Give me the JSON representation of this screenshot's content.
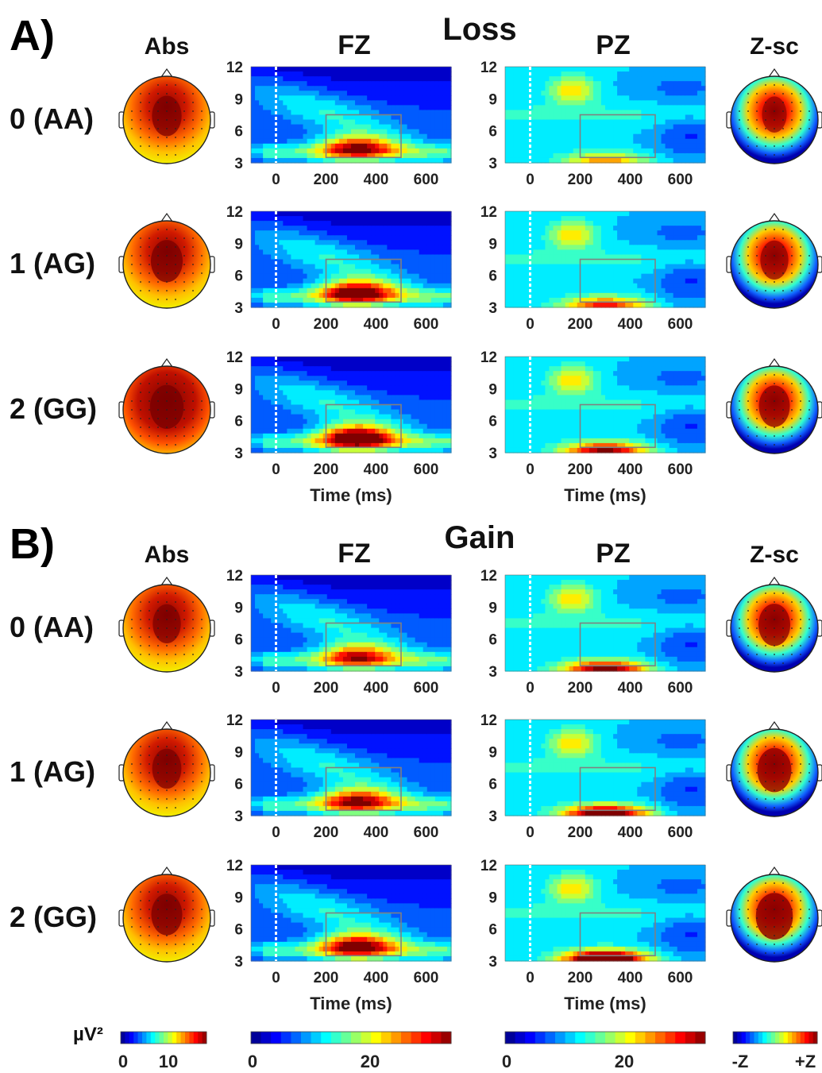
{
  "panels": [
    {
      "letter": "A)",
      "condition": "Loss",
      "col_abs": "Abs",
      "col_fz": "FZ",
      "col_pz": "PZ",
      "col_zsc": "Z-sc",
      "rows": [
        {
          "label": "0 (AA)",
          "fz_peak": 0.62,
          "pz_low": 0.4
        },
        {
          "label": "1 (AG)",
          "fz_peak": 0.72,
          "pz_low": 0.55
        },
        {
          "label": "2 (GG)",
          "fz_peak": 0.8,
          "pz_low": 0.68
        }
      ],
      "xaxis_title": "Time (ms)"
    },
    {
      "letter": "B)",
      "condition": "Gain",
      "col_abs": "Abs",
      "col_fz": "FZ",
      "col_pz": "PZ",
      "col_zsc": "Z-sc",
      "rows": [
        {
          "label": "0 (AA)",
          "fz_peak": 0.55,
          "pz_low": 0.72
        },
        {
          "label": "1 (AG)",
          "fz_peak": 0.6,
          "pz_low": 0.82
        },
        {
          "label": "2 (GG)",
          "fz_peak": 0.68,
          "pz_low": 0.95
        }
      ],
      "xaxis_title": "Time (ms)"
    }
  ],
  "chart_data": {
    "type": "heatmap",
    "x_ticks": [
      "0",
      "200",
      "400",
      "600"
    ],
    "y_ticks": [
      "12",
      "9",
      "6",
      "3"
    ],
    "xlim": [
      -100,
      700
    ],
    "ylim": [
      3,
      12
    ],
    "roi_box": {
      "time": [
        200,
        500
      ],
      "freq": [
        3.5,
        7.5
      ]
    },
    "stimulus_onset_ms": 0
  },
  "colorbars": [
    {
      "unit": "µV²",
      "ticks": [
        "0",
        "10"
      ]
    },
    {
      "unit": "",
      "ticks": [
        "0",
        "20"
      ]
    },
    {
      "unit": "",
      "ticks": [
        "0",
        "20"
      ]
    },
    {
      "unit": "",
      "ticks": [
        "-Z",
        "+Z"
      ]
    }
  ]
}
